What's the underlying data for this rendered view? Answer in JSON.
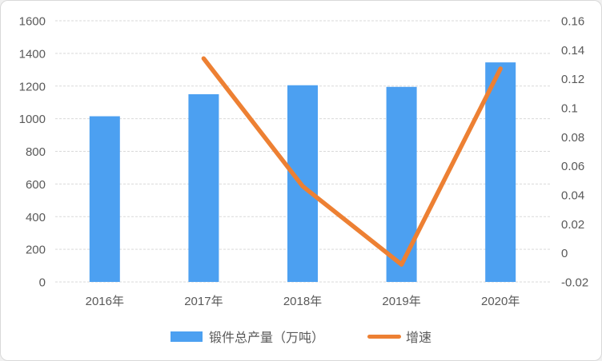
{
  "chart_data": {
    "type": "combo-bar-line",
    "categories": [
      "2016年",
      "2017年",
      "2018年",
      "2019年",
      "2020年"
    ],
    "series": [
      {
        "name": "锻件总产量（万吨）",
        "type": "bar",
        "axis": "left",
        "color": "#4CA0F1",
        "values": [
          1015,
          1150,
          1205,
          1195,
          1345
        ]
      },
      {
        "name": "增速",
        "type": "line",
        "axis": "right",
        "color": "#ED8033",
        "values": [
          null,
          0.134,
          0.046,
          -0.008,
          0.127
        ]
      }
    ],
    "left_axis": {
      "min": 0,
      "max": 1600,
      "tick_labels": [
        "1600",
        "1400",
        "1200",
        "1000",
        "800",
        "600",
        "400",
        "200",
        "0"
      ]
    },
    "right_axis": {
      "min": -0.02,
      "max": 0.16,
      "tick_labels": [
        "0.16",
        "0.14",
        "0.12",
        "0.1",
        "0.08",
        "0.06",
        "0.04",
        "0.02",
        "0",
        "-0.02"
      ]
    },
    "grid": true,
    "gridline_color": "#d9d9d9",
    "text_color": "#595959",
    "legend_position": "bottom",
    "title": ""
  }
}
